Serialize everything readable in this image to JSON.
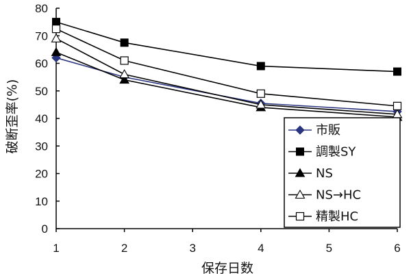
{
  "chart_data": {
    "type": "line",
    "xlabel": "保存日数",
    "ylabel": "破断歪率(%)",
    "x_ticks": [
      "1",
      "2",
      "3",
      "4",
      "5",
      "6"
    ],
    "y_ticks": [
      "0",
      "10",
      "20",
      "30",
      "40",
      "50",
      "60",
      "70",
      "80"
    ],
    "xlim": [
      1,
      6
    ],
    "ylim": [
      0,
      80
    ],
    "grid": false,
    "legend_position": "lower-right",
    "series": [
      {
        "name": "市販",
        "x": [
          1,
          2,
          4,
          6
        ],
        "values": [
          62,
          55,
          45.5,
          42.5
        ],
        "marker": "diamond-filled",
        "color": "#2a3580"
      },
      {
        "name": "調製SY",
        "x": [
          1,
          2,
          4,
          6
        ],
        "values": [
          75,
          67.5,
          59,
          57
        ],
        "marker": "square-filled",
        "color": "#000000"
      },
      {
        "name": "NS",
        "x": [
          1,
          2,
          4,
          6
        ],
        "values": [
          64,
          54,
          44,
          40.5
        ],
        "marker": "triangle-filled",
        "color": "#000000"
      },
      {
        "name": "NS→HC",
        "x": [
          1,
          2,
          4,
          6
        ],
        "values": [
          69,
          56,
          45,
          41.5
        ],
        "marker": "triangle-open",
        "color": "#000000"
      },
      {
        "name": "精製HC",
        "x": [
          1,
          2,
          4,
          6
        ],
        "values": [
          72.5,
          61,
          49,
          44.5
        ],
        "marker": "square-open",
        "color": "#000000"
      }
    ]
  }
}
